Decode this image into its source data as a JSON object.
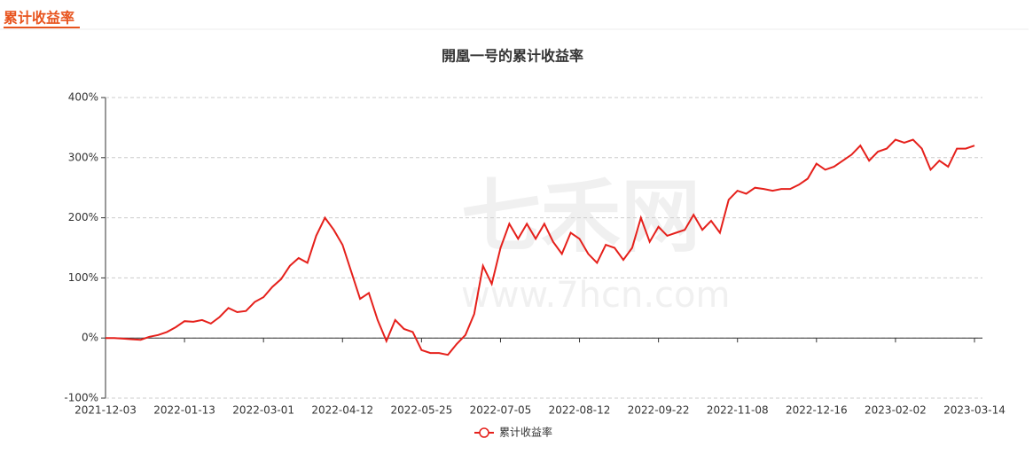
{
  "header": {
    "tab": "累计收益率"
  },
  "chart_data": {
    "type": "line",
    "title": "開凰一号的累计收益率",
    "watermark": "七禾网",
    "watermark_url": "www.7hcn.com",
    "categories": [
      "2021-12-03",
      null,
      null,
      null,
      null,
      null,
      null,
      null,
      null,
      "2022-01-13",
      null,
      null,
      null,
      null,
      null,
      null,
      null,
      null,
      "2022-03-01",
      null,
      null,
      null,
      null,
      null,
      null,
      null,
      null,
      "2022-04-12",
      null,
      null,
      null,
      null,
      null,
      null,
      null,
      null,
      "2022-05-25",
      null,
      null,
      null,
      null,
      null,
      null,
      null,
      null,
      "2022-07-05",
      null,
      null,
      null,
      null,
      null,
      null,
      null,
      null,
      "2022-08-12",
      null,
      null,
      null,
      null,
      null,
      null,
      null,
      null,
      "2022-09-22",
      null,
      null,
      null,
      null,
      null,
      null,
      null,
      null,
      "2022-11-08",
      null,
      null,
      null,
      null,
      null,
      null,
      null,
      null,
      "2022-12-16",
      null,
      null,
      null,
      null,
      null,
      null,
      null,
      null,
      "2023-02-02",
      null,
      null,
      null,
      null,
      null,
      null,
      null,
      null,
      "2023-03-14"
    ],
    "series": [
      {
        "name": "累计收益率",
        "color": "#e5201b",
        "values": [
          0,
          0,
          -1,
          -2,
          -3,
          2,
          5,
          10,
          18,
          28,
          27,
          30,
          24,
          35,
          50,
          43,
          45,
          60,
          68,
          85,
          98,
          120,
          133,
          125,
          170,
          200,
          180,
          155,
          110,
          65,
          75,
          30,
          -5,
          30,
          15,
          10,
          -20,
          -25,
          -25,
          -28,
          -10,
          5,
          40,
          120,
          90,
          150,
          190,
          165,
          190,
          165,
          190,
          160,
          140,
          175,
          165,
          140,
          125,
          155,
          150,
          130,
          150,
          200,
          160,
          185,
          170,
          175,
          180,
          205,
          180,
          195,
          175,
          230,
          245,
          240,
          250,
          248,
          245,
          248,
          248,
          255,
          265,
          290,
          280,
          285,
          295,
          305,
          320,
          295,
          310,
          315,
          330,
          325,
          330,
          315,
          280,
          295,
          285,
          315,
          315,
          320
        ]
      }
    ],
    "ylim": [
      -100,
      400
    ],
    "yticks": [
      {
        "value": -100,
        "label": "-100%"
      },
      {
        "value": 0,
        "label": "0%"
      },
      {
        "value": 100,
        "label": "100%"
      },
      {
        "value": 200,
        "label": "200%"
      },
      {
        "value": 300,
        "label": "300%"
      },
      {
        "value": 400,
        "label": "400%"
      }
    ],
    "grid": true,
    "legend": "bottom"
  }
}
